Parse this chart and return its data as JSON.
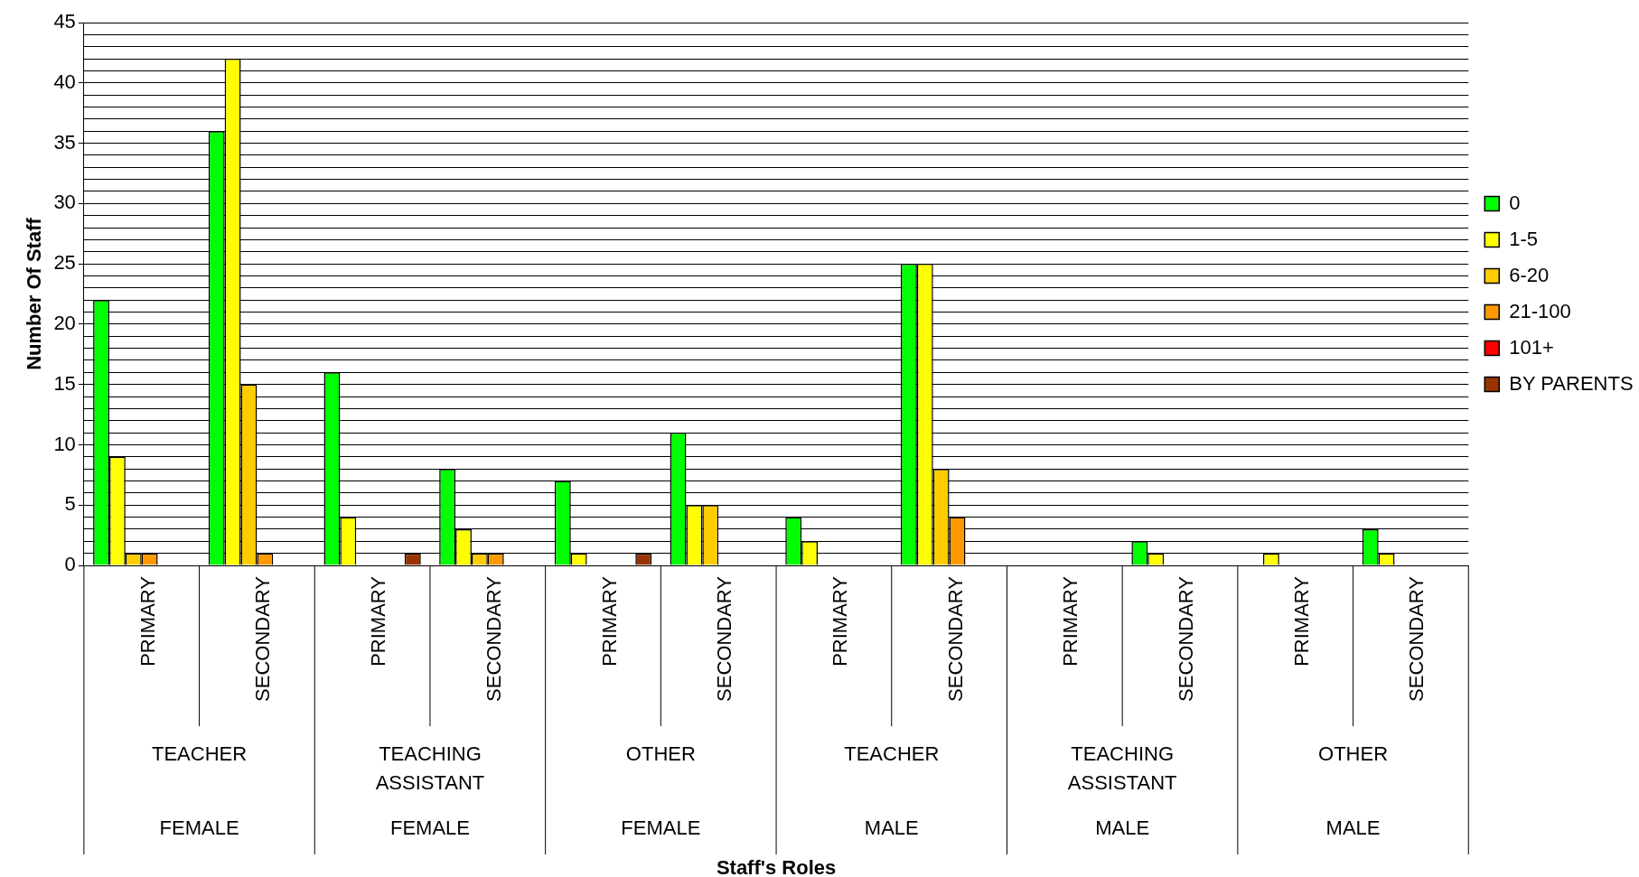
{
  "chart_data": {
    "type": "bar",
    "ylabel": "Number Of Staff",
    "categories": [
      "PRIMARY",
      "SECONDARY",
      "PRIMARY",
      "SECONDARY",
      "PRIMARY",
      "SECONDARY",
      "PRIMARY",
      "SECONDARY",
      "PRIMARY",
      "SECONDARY",
      "PRIMARY",
      "SECONDARY"
    ],
    "annotations": [
      "TEACHER",
      "TEACHING ASSISTANT",
      "OTHER",
      "TEACHER",
      "TEACHING ASSISTANT",
      "OTHER",
      "FEMALE",
      "FEMALE",
      "FEMALE",
      "MALE",
      "MALE",
      "MALE",
      "Staff's Roles"
    ],
    "series": [
      {
        "name": "0",
        "color": "#00ff00",
        "values": [
          22,
          36,
          16,
          8,
          7,
          11,
          4,
          25,
          null,
          2,
          null,
          3
        ]
      },
      {
        "name": "1-5",
        "color": "#ffff00",
        "values": [
          9,
          42,
          4,
          3,
          1,
          5,
          2,
          25,
          null,
          1,
          1,
          1
        ]
      },
      {
        "name": "6-20",
        "color": "#ffcc00",
        "values": [
          1,
          15,
          null,
          1,
          null,
          5,
          null,
          8,
          null,
          null,
          null,
          null
        ]
      },
      {
        "name": "21-100",
        "color": "#ff9900",
        "values": [
          1,
          1,
          null,
          1,
          null,
          null,
          null,
          4,
          null,
          null,
          null,
          null
        ]
      },
      {
        "name": "101+",
        "color": "#ff0000",
        "values": [
          null,
          null,
          null,
          null,
          null,
          null,
          null,
          null,
          null,
          null,
          null,
          null
        ]
      },
      {
        "name": "BY PARENTS",
        "color": "#993300",
        "values": [
          null,
          null,
          1,
          null,
          1,
          null,
          null,
          null,
          null,
          null,
          null,
          null
        ]
      }
    ],
    "ylim": [
      0,
      45
    ],
    "yticks": [
      0,
      {
        "value": 1,
        "label": null
      },
      {
        "value": 2,
        "label": null
      },
      {
        "value": 3,
        "label": null
      },
      {
        "value": 4,
        "label": null
      },
      5,
      {
        "value": 6,
        "label": null
      },
      {
        "value": 7,
        "label": null
      },
      {
        "value": 8,
        "label": null
      },
      {
        "value": 9,
        "label": null
      },
      10,
      {
        "value": 11,
        "label": null
      },
      {
        "value": 12,
        "label": null
      },
      {
        "value": 13,
        "label": null
      },
      {
        "value": 14,
        "label": null
      },
      15,
      {
        "value": 16,
        "label": null
      },
      {
        "value": 17,
        "label": null
      },
      {
        "value": 18,
        "label": null
      },
      {
        "value": 19,
        "label": null
      },
      20,
      {
        "value": 21,
        "label": null
      },
      {
        "value": 22,
        "label": null
      },
      {
        "value": 23,
        "label": null
      },
      {
        "value": 24,
        "label": null
      },
      25,
      {
        "value": 26,
        "label": null
      },
      {
        "value": 27,
        "label": null
      },
      {
        "value": 28,
        "label": null
      },
      {
        "value": 29,
        "label": null
      },
      30,
      {
        "value": 31,
        "label": null
      },
      {
        "value": 32,
        "label": null
      },
      {
        "value": 33,
        "label": null
      },
      {
        "value": 34,
        "label": null
      },
      35,
      {
        "value": 36,
        "label": null
      },
      {
        "value": 37,
        "label": null
      },
      {
        "value": 38,
        "label": null
      },
      {
        "value": 39,
        "label": null
      },
      40,
      {
        "value": 41,
        "label": null
      },
      {
        "value": 42,
        "label": null
      },
      {
        "value": 43,
        "label": null
      },
      {
        "value": 44,
        "label": null
      },
      45
    ],
    "grid": "y",
    "legend": "right"
  }
}
